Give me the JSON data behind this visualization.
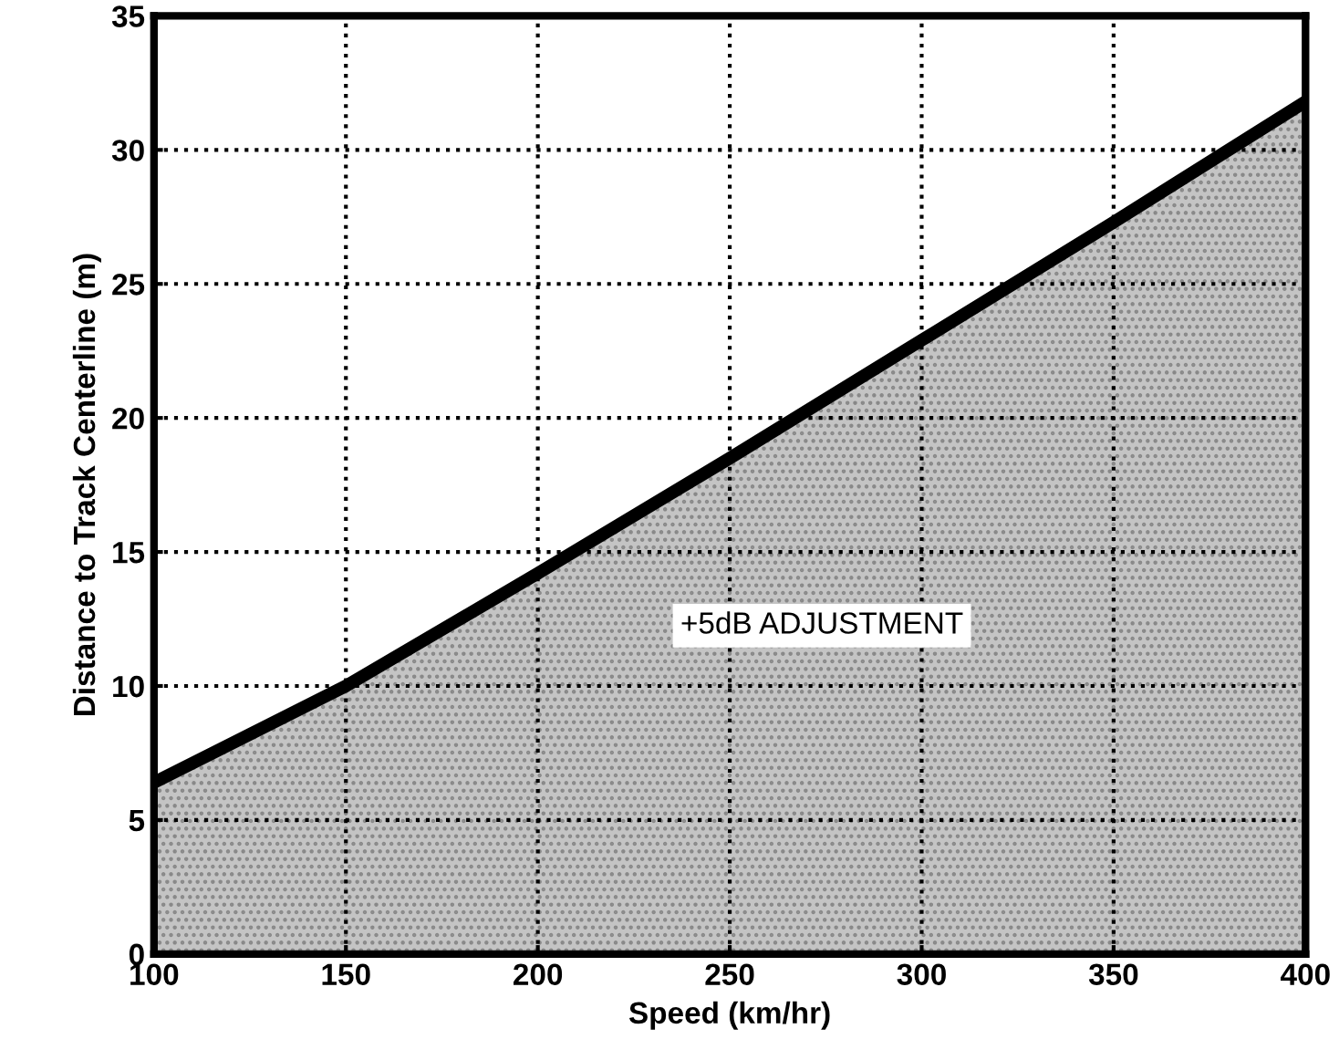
{
  "chart_data": {
    "type": "area",
    "xlabel": "Speed (km/hr)",
    "ylabel": "Distance to Track Centerline (m)",
    "x": [
      100,
      150,
      200,
      250,
      300,
      350,
      400
    ],
    "series": [
      {
        "color": "#c4c4c4",
        "values": [
          6.4,
          10.0,
          14.2,
          18.5,
          22.9,
          27.3,
          31.8
        ]
      }
    ],
    "xlim": [
      100,
      400
    ],
    "ylim": [
      0,
      35
    ],
    "xticks": [
      100,
      150,
      200,
      250,
      300,
      350,
      400
    ],
    "yticks": [
      0,
      5,
      10,
      15,
      20,
      25,
      30,
      35
    ],
    "grid": true,
    "line_style": "dotted",
    "annotations": [
      "+5dB ADJUSTMENT"
    ]
  }
}
